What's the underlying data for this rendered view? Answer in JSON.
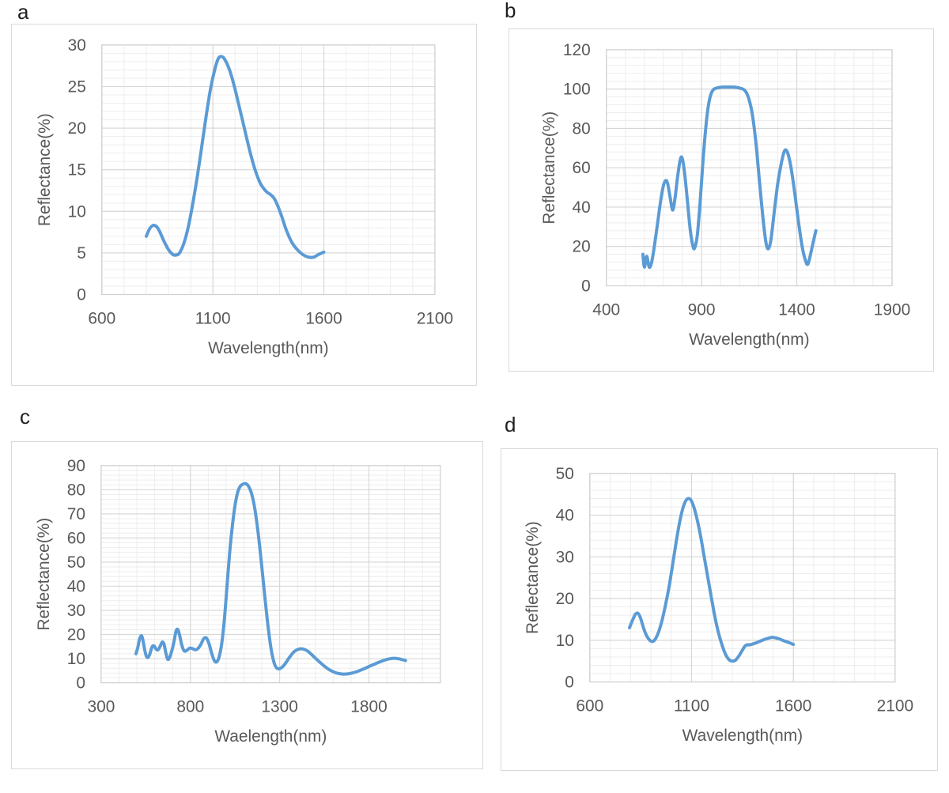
{
  "figure": {
    "panel_labels": [
      "a",
      "b",
      "c",
      "d"
    ]
  },
  "colors": {
    "line": "#5B9BD5",
    "grid_major": "#D6D6D6",
    "grid_minor": "#EDEDED",
    "plot_border": "#CFCFCF",
    "axis_text": "#595959",
    "panel_border": "#D9D9D9",
    "panel_label_text": "#1F1F1F"
  },
  "chart_data": [
    {
      "type": "line",
      "panel_label": "a",
      "title": "",
      "xlabel": "Wavelength(nm)",
      "ylabel": "Reflectance(%)",
      "xlim": [
        600,
        2100
      ],
      "ylim": [
        0,
        30
      ],
      "xticks": [
        600,
        1100,
        1600,
        2100
      ],
      "yticks": [
        0,
        5,
        10,
        15,
        20,
        25,
        30
      ],
      "minor_x_step": 100,
      "minor_y_step": 1,
      "grid": true,
      "legend": "none",
      "series": [
        {
          "name": "reflectance",
          "x": [
            800,
            815,
            830,
            845,
            860,
            880,
            900,
            920,
            935,
            950,
            970,
            990,
            1010,
            1030,
            1050,
            1070,
            1090,
            1110,
            1125,
            1140,
            1155,
            1175,
            1195,
            1215,
            1240,
            1265,
            1290,
            1315,
            1340,
            1360,
            1375,
            1390,
            1410,
            1430,
            1455,
            1480,
            1505,
            1530,
            1555,
            1575,
            1600
          ],
          "y": [
            7.0,
            7.9,
            8.3,
            8.2,
            7.6,
            6.4,
            5.4,
            4.8,
            4.75,
            5.0,
            6.2,
            8.2,
            11.0,
            14.2,
            17.8,
            21.5,
            24.8,
            27.2,
            28.4,
            28.6,
            28.2,
            27.0,
            25.2,
            23.0,
            20.2,
            17.4,
            15.0,
            13.3,
            12.4,
            12.0,
            11.6,
            10.8,
            9.4,
            7.8,
            6.3,
            5.4,
            4.8,
            4.5,
            4.5,
            4.8,
            5.1
          ]
        }
      ]
    },
    {
      "type": "line",
      "panel_label": "b",
      "title": "",
      "xlabel": "Wavelength(nm)",
      "ylabel": "Reflectance(%)",
      "xlim": [
        400,
        1900
      ],
      "ylim": [
        0,
        120
      ],
      "xticks": [
        400,
        900,
        1400,
        1900
      ],
      "yticks": [
        0,
        20,
        40,
        60,
        80,
        100,
        120
      ],
      "minor_x_step": 100,
      "minor_y_step": 4,
      "grid": true,
      "legend": "none",
      "series": [
        {
          "name": "reflectance",
          "x": [
            592,
            600,
            612,
            625,
            638,
            652,
            668,
            685,
            700,
            712,
            722,
            735,
            748,
            760,
            775,
            788,
            798,
            810,
            825,
            840,
            855,
            865,
            878,
            892,
            905,
            918,
            932,
            945,
            960,
            980,
            1010,
            1040,
            1070,
            1100,
            1125,
            1145,
            1165,
            1185,
            1205,
            1225,
            1240,
            1252,
            1265,
            1282,
            1300,
            1318,
            1335,
            1350,
            1368,
            1388,
            1408,
            1428,
            1445,
            1458,
            1472,
            1488,
            1500
          ],
          "y": [
            16,
            9.5,
            15,
            9.5,
            12,
            20,
            31,
            43,
            51,
            53.5,
            52,
            45,
            38.5,
            44,
            56,
            64,
            65,
            58,
            44,
            29,
            20,
            19.5,
            26,
            42,
            60,
            76,
            89,
            96,
            99.5,
            100.5,
            101,
            101,
            101,
            100.5,
            99.5,
            96,
            88,
            73,
            52,
            32,
            21,
            19,
            24,
            38,
            52,
            62,
            68.5,
            68,
            61,
            48,
            33,
            20,
            13,
            11,
            16,
            23,
            28
          ]
        }
      ]
    },
    {
      "type": "line",
      "panel_label": "c",
      "title": "",
      "xlabel": "Waelength(nm)",
      "ylabel": "Reflectance(%)",
      "xlim": [
        300,
        2200
      ],
      "ylim": [
        0,
        90
      ],
      "xticks": [
        300,
        800,
        1300,
        1800
      ],
      "yticks": [
        0,
        10,
        20,
        30,
        40,
        50,
        60,
        70,
        80,
        90
      ],
      "minor_x_step": 100,
      "minor_y_step": 2,
      "grid": true,
      "legend": "none",
      "series": [
        {
          "name": "reflectance",
          "x": [
            495,
            505,
            515,
            525,
            533,
            543,
            553,
            563,
            573,
            585,
            597,
            607,
            618,
            630,
            642,
            652,
            662,
            672,
            682,
            695,
            708,
            720,
            730,
            740,
            752,
            765,
            778,
            795,
            810,
            825,
            840,
            858,
            875,
            890,
            905,
            920,
            935,
            948,
            960,
            975,
            990,
            1005,
            1020,
            1035,
            1050,
            1065,
            1080,
            1095,
            1110,
            1125,
            1140,
            1155,
            1170,
            1185,
            1200,
            1215,
            1230,
            1245,
            1258,
            1270,
            1282,
            1295,
            1310,
            1330,
            1355,
            1380,
            1405,
            1430,
            1455,
            1480,
            1510,
            1545,
            1580,
            1615,
            1650,
            1685,
            1720,
            1760,
            1800,
            1840,
            1880,
            1915,
            1950,
            1980,
            2005
          ],
          "y": [
            12,
            14.5,
            18,
            19.5,
            18,
            14,
            11,
            10.5,
            12,
            14.8,
            15.2,
            14,
            13.6,
            15,
            16.8,
            16,
            12.5,
            9.8,
            10.2,
            13,
            17,
            21.5,
            22,
            19.5,
            15.5,
            13.2,
            13.3,
            14.3,
            14.2,
            13.7,
            14,
            15.8,
            18.3,
            18.5,
            16,
            12,
            9,
            8.7,
            10.5,
            16,
            26,
            40,
            54,
            65,
            73.5,
            79,
            81.5,
            82.3,
            82.5,
            81.5,
            79,
            74.5,
            67.5,
            58.5,
            48,
            37,
            26.5,
            17.5,
            11.5,
            8,
            6.2,
            5.8,
            6.2,
            7.8,
            10.5,
            12.8,
            13.9,
            14,
            13.2,
            11.6,
            9.5,
            7.2,
            5.3,
            4.1,
            3.6,
            3.7,
            4.3,
            5.4,
            6.7,
            8,
            9.2,
            9.9,
            10.1,
            9.7,
            9.2
          ]
        }
      ]
    },
    {
      "type": "line",
      "panel_label": "d",
      "title": "",
      "xlabel": "Wavelength(nm)",
      "ylabel": "Reflectance(%)",
      "xlim": [
        600,
        2100
      ],
      "ylim": [
        0,
        50
      ],
      "xticks": [
        600,
        1100,
        1600,
        2100
      ],
      "yticks": [
        0,
        10,
        20,
        30,
        40,
        50
      ],
      "minor_x_step": 100,
      "minor_y_step": 2,
      "grid": true,
      "legend": "none",
      "series": [
        {
          "name": "reflectance",
          "x": [
            795,
            810,
            825,
            838,
            850,
            865,
            880,
            895,
            908,
            922,
            938,
            955,
            972,
            990,
            1008,
            1025,
            1042,
            1058,
            1072,
            1085,
            1098,
            1112,
            1128,
            1145,
            1162,
            1180,
            1198,
            1215,
            1232,
            1250,
            1268,
            1285,
            1300,
            1315,
            1332,
            1348,
            1362,
            1372,
            1385,
            1400,
            1418,
            1438,
            1458,
            1478,
            1495,
            1512,
            1532,
            1552,
            1575,
            1600
          ],
          "y": [
            13,
            14.8,
            16.3,
            16.4,
            15.2,
            12.8,
            11,
            10,
            9.7,
            10.3,
            12,
            14.8,
            18.5,
            23,
            28.5,
            33.8,
            38.5,
            41.8,
            43.5,
            44,
            43.5,
            41.8,
            38.8,
            34.8,
            30,
            25,
            20,
            15.5,
            11.8,
            8.8,
            6.5,
            5.3,
            5,
            5.2,
            6.2,
            7.5,
            8.6,
            8.9,
            8.9,
            9.1,
            9.4,
            9.8,
            10.2,
            10.5,
            10.7,
            10.6,
            10.3,
            9.9,
            9.5,
            9
          ]
        }
      ]
    }
  ]
}
